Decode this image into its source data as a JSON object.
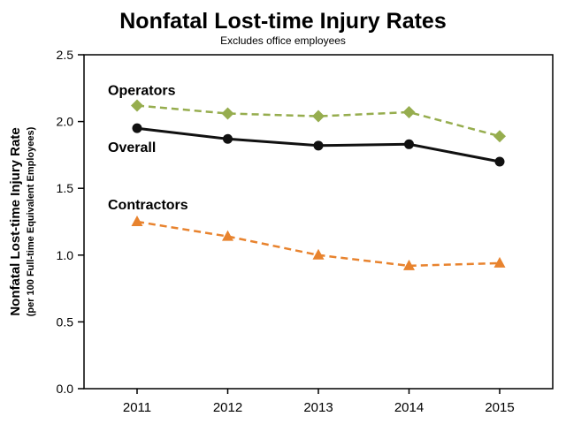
{
  "chart_data": {
    "type": "line",
    "title": "Nonfatal Lost-time Injury Rates",
    "subtitle": "Excludes office employees",
    "ylabel": "Nonfatal Lost-time Injury Rate",
    "ylabel_sub": "(per 100 Full-time Equivalent Employees)",
    "categories": [
      "2011",
      "2012",
      "2013",
      "2014",
      "2015"
    ],
    "ylim": [
      0.0,
      2.5
    ],
    "ytick_step": 0.5,
    "grid": false,
    "legend": "inline-labels",
    "series": [
      {
        "name": "Operators",
        "color": "#96AD4E",
        "dash": true,
        "marker": "diamond",
        "label_dy": -12,
        "values": [
          2.12,
          2.06,
          2.04,
          2.07,
          1.89
        ]
      },
      {
        "name": "Overall",
        "color": "#111111",
        "dash": false,
        "marker": "circle",
        "label_dy": 27,
        "values": [
          1.95,
          1.87,
          1.82,
          1.83,
          1.7
        ]
      },
      {
        "name": "Contractors",
        "color": "#E8832E",
        "dash": true,
        "marker": "triangle",
        "label_dy": -14,
        "values": [
          1.25,
          1.14,
          1.0,
          0.92,
          0.94
        ]
      }
    ]
  }
}
